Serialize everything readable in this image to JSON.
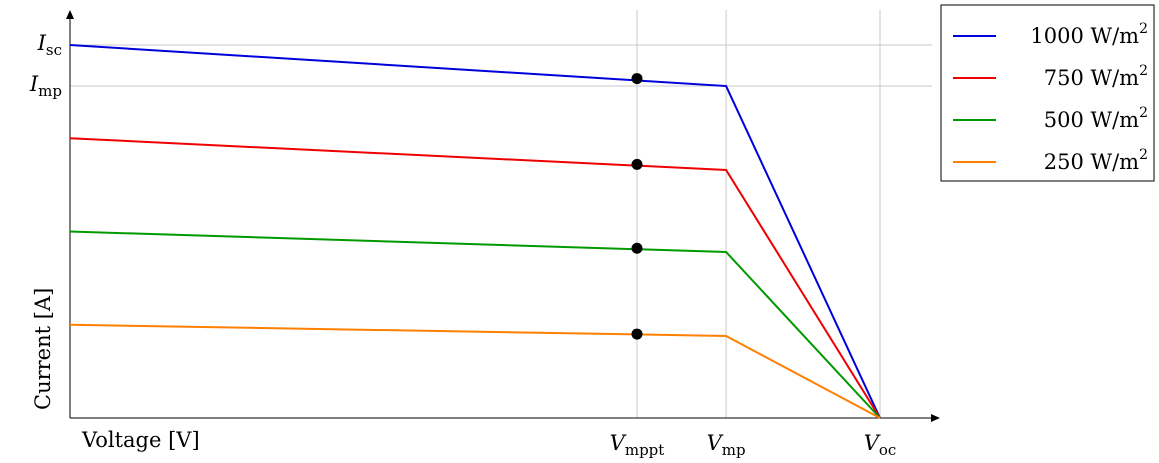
{
  "chart_data": {
    "type": "line",
    "title": "",
    "xlabel": "Voltage [V]",
    "ylabel": "Current [A]",
    "xlim": [
      0,
      1.0
    ],
    "ylim": [
      0,
      1.05
    ],
    "grid": "vertical and horizontal reference lines",
    "legend": "top-right",
    "x_ticks": [
      {
        "x": 0.7,
        "base": "V",
        "sub": "mppt"
      },
      {
        "x": 0.81,
        "base": "V",
        "sub": "mp"
      },
      {
        "x": 1.0,
        "base": "V",
        "sub": "oc"
      }
    ],
    "y_ticks": [
      {
        "y": 1.0,
        "base": "I",
        "sub": "sc"
      },
      {
        "y": 0.89,
        "base": "I",
        "sub": "mp"
      }
    ],
    "series": [
      {
        "name": "1000 W/m",
        "sup": "2",
        "color": "#0000dd",
        "x": [
          0,
          0.81,
          1.0
        ],
        "y": [
          1.0,
          0.89,
          0.0
        ],
        "mppt_y": 0.91
      },
      {
        "name": "750 W/m",
        "sup": "2",
        "color": "#ee0000",
        "x": [
          0,
          0.81,
          1.0
        ],
        "y": [
          0.75,
          0.665,
          0.0
        ],
        "mppt_y": 0.68
      },
      {
        "name": "500 W/m",
        "sup": "2",
        "color": "#009900",
        "x": [
          0,
          0.81,
          1.0
        ],
        "y": [
          0.5,
          0.445,
          0.0
        ],
        "mppt_y": 0.455
      },
      {
        "name": "250 W/m",
        "sup": "2",
        "color": "#ff8000",
        "x": [
          0,
          0.81,
          1.0
        ],
        "y": [
          0.25,
          0.22,
          0.0
        ],
        "mppt_y": 0.225
      }
    ]
  }
}
